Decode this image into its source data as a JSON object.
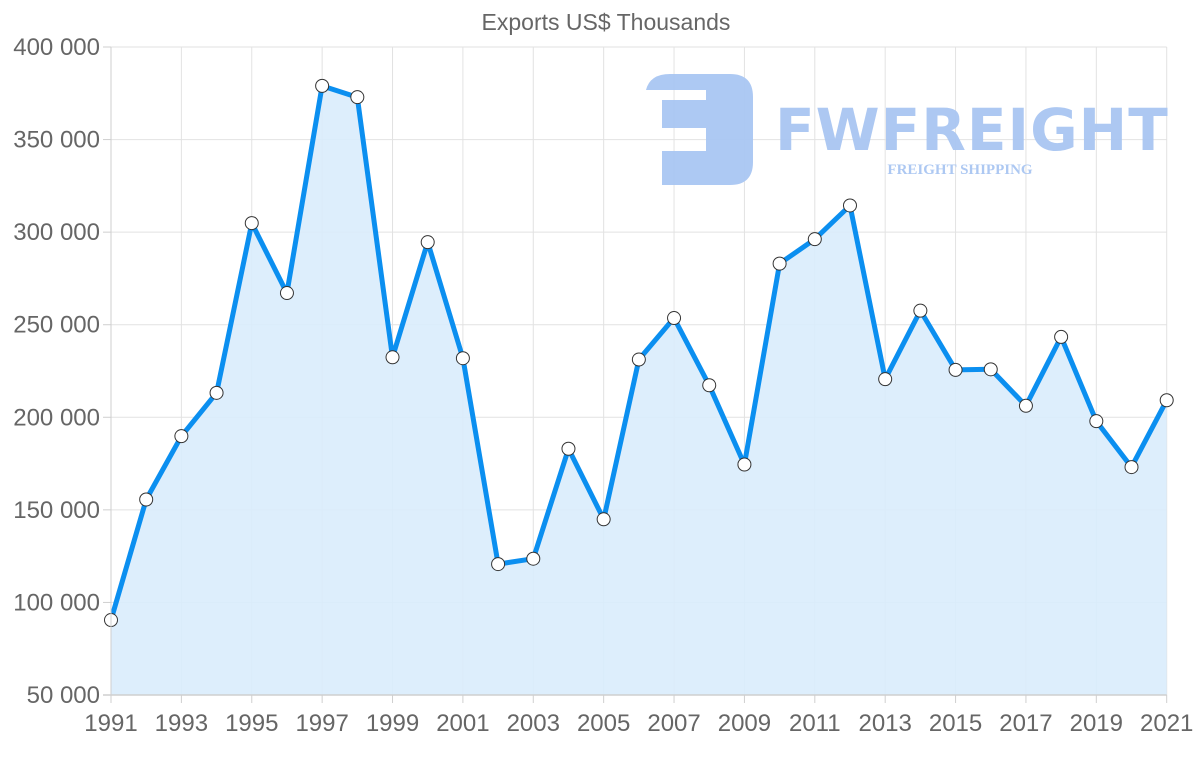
{
  "chart_data": {
    "type": "line",
    "title": "Exports US$ Thousands",
    "xlabel": "",
    "ylabel": "",
    "x": [
      1991,
      1992,
      1993,
      1994,
      1995,
      1996,
      1997,
      1998,
      1999,
      2000,
      2001,
      2002,
      2003,
      2004,
      2005,
      2006,
      2007,
      2008,
      2009,
      2010,
      2011,
      2012,
      2013,
      2014,
      2015,
      2016,
      2017,
      2018,
      2019,
      2020,
      2021
    ],
    "series": [
      {
        "name": "Exports US$ Thousands",
        "values": [
          90500,
          155600,
          189800,
          213200,
          304900,
          267100,
          379000,
          372900,
          232400,
          294600,
          231900,
          120700,
          123600,
          183000,
          144900,
          231200,
          253600,
          217300,
          174500,
          283000,
          296200,
          314400,
          220600,
          257600,
          225600,
          225900,
          206200,
          243400,
          197900,
          173100,
          209200
        ]
      }
    ],
    "ylim": [
      50000,
      400000
    ],
    "xlim": [
      1991,
      2021
    ],
    "y_ticks": [
      50000,
      100000,
      150000,
      200000,
      250000,
      300000,
      350000,
      400000
    ],
    "y_tick_labels": [
      "50 000",
      "100 000",
      "150 000",
      "200 000",
      "250 000",
      "300 000",
      "350 000",
      "400 000"
    ],
    "x_tick_labels": [
      "1991",
      "1993",
      "1995",
      "1997",
      "1999",
      "2001",
      "2003",
      "2005",
      "2007",
      "2009",
      "2011",
      "2013",
      "2015",
      "2017",
      "2019",
      "2021"
    ],
    "grid": true,
    "legend": "none",
    "filled_area": true
  },
  "colors": {
    "line": "#0b8ff0",
    "fill": "#d9ecfc",
    "grid": "#e2e2e2",
    "axis": "#cfcfcf",
    "text": "#666666",
    "point_fill": "#ffffff",
    "point_stroke": "#333333",
    "watermark": "#a9c6f2"
  },
  "watermark": {
    "brand": "FWFREIGHT",
    "tagline": "FREIGHT SHIPPING"
  }
}
